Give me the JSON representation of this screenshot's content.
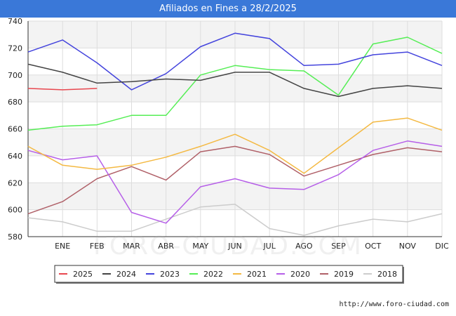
{
  "chart_data": {
    "type": "line",
    "title": "Afiliados en Fines a 28/2/2025",
    "categories": [
      "",
      "ENE",
      "FEB",
      "MAR",
      "ABR",
      "MAY",
      "JUN",
      "JUL",
      "AGO",
      "SEP",
      "OCT",
      "NOV",
      "DIC"
    ],
    "xlabel": "",
    "ylabel": "",
    "ylim": [
      580,
      740
    ],
    "yticks": [
      580,
      600,
      620,
      640,
      660,
      680,
      700,
      720,
      740
    ],
    "grid": true,
    "legend_position": "bottom",
    "series": [
      {
        "name": "2025",
        "color": "#e8474f",
        "values": [
          690,
          689,
          690,
          null,
          null,
          null,
          null,
          null,
          null,
          null,
          null,
          null,
          null
        ]
      },
      {
        "name": "2024",
        "color": "#444444",
        "values": [
          708,
          702,
          694,
          695,
          697,
          696,
          702,
          702,
          690,
          684,
          690,
          692,
          690
        ]
      },
      {
        "name": "2023",
        "color": "#4444dd",
        "values": [
          717,
          726,
          709,
          689,
          701,
          721,
          731,
          727,
          707,
          708,
          715,
          717,
          707
        ]
      },
      {
        "name": "2022",
        "color": "#55ee55",
        "values": [
          659,
          662,
          663,
          670,
          670,
          700,
          707,
          704,
          703,
          685,
          723,
          728,
          716
        ]
      },
      {
        "name": "2021",
        "color": "#f4b942",
        "values": [
          647,
          633,
          630,
          633,
          639,
          647,
          656,
          644,
          627,
          646,
          665,
          668,
          659
        ]
      },
      {
        "name": "2020",
        "color": "#b65fe8",
        "values": [
          644,
          637,
          640,
          598,
          590,
          617,
          623,
          616,
          615,
          626,
          644,
          651,
          647
        ]
      },
      {
        "name": "2019",
        "color": "#b06068",
        "values": [
          597,
          606,
          623,
          632,
          622,
          643,
          647,
          641,
          625,
          633,
          641,
          646,
          643
        ]
      },
      {
        "name": "2018",
        "color": "#cccccc",
        "values": [
          594,
          591,
          584,
          584,
          593,
          602,
          604,
          586,
          581,
          588,
          593,
          591,
          597
        ]
      }
    ]
  },
  "source_text": "http://www.foro-ciudad.com",
  "watermark_text": "FORO-CIUDAD.COM"
}
